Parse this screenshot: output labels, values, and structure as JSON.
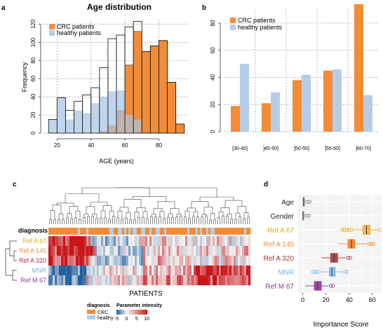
{
  "colors": {
    "crc": "#f28c38",
    "healthy": "#b5cde8",
    "overlap": "#c0b4b0",
    "heat_red": "#c8141a",
    "heat_blue": "#1f5e9c",
    "heat_mid": "#f4f4f4",
    "label_A67": "#e8a80f",
    "label_A145": "#f28c38",
    "label_A320": "#a8333b",
    "label_MNR": "#7fb2dc",
    "label_M67": "#8e3a96",
    "grid": "#999999"
  },
  "panels": {
    "a": "a",
    "b": "b",
    "c": "c",
    "d": "d"
  },
  "chart_data": [
    {
      "panel": "a",
      "type": "bar",
      "title": "Age distribution",
      "xlabel": "AGE (years)",
      "ylabel": "Frequency",
      "xlim": [
        12,
        98
      ],
      "ylim": [
        0,
        125
      ],
      "xticks": [
        20,
        40,
        60,
        80
      ],
      "yticks": [
        0,
        20,
        40,
        60,
        80,
        100,
        120
      ],
      "bin_width": 5,
      "bin_starts": [
        15,
        20,
        25,
        30,
        35,
        40,
        45,
        50,
        55,
        60,
        65,
        70,
        75,
        80,
        85,
        90
      ],
      "legend": [
        "CRC patients",
        "healthy patients"
      ],
      "legend_position": "top-left",
      "grid": true,
      "series": [
        {
          "name": "CRC patients",
          "values": [
            0,
            0,
            0,
            0,
            0,
            0,
            2,
            8,
            25,
            75,
            112,
            90,
            96,
            102,
            56,
            10
          ]
        },
        {
          "name": "healthy patients",
          "values": [
            15,
            39,
            15,
            25,
            22,
            33,
            40,
            46,
            47,
            20,
            15,
            0,
            0,
            0,
            0,
            0
          ]
        },
        {
          "name": "",
          "values": [
            15,
            39,
            25,
            35,
            42,
            50,
            72,
            104,
            108,
            117,
            123,
            90,
            96,
            102,
            56,
            10
          ]
        }
      ]
    },
    {
      "panel": "b",
      "type": "bar",
      "categories": [
        "[30-45]",
        "]45-50]",
        "]50-55]",
        "]55-60]",
        "]60-70]"
      ],
      "ylim": [
        0,
        95
      ],
      "yticks": [
        0,
        20,
        40,
        60,
        80
      ],
      "legend": [
        "CRC patients",
        "healthy patients"
      ],
      "legend_position": "top-left",
      "grid": true,
      "series": [
        {
          "name": "CRC patients",
          "values": [
            19,
            21,
            38,
            45,
            94
          ]
        },
        {
          "name": "healthy patients",
          "values": [
            50,
            29,
            42,
            46,
            27
          ]
        }
      ]
    },
    {
      "panel": "c",
      "type": "heatmap",
      "xlabel": "PATIENTS",
      "row_labels": [
        "Ref A 67",
        "Ref A 145",
        "Ref A 320",
        "MNR",
        "Ref M 67"
      ],
      "annotation_label": "diagnosis",
      "legend_diagnosis_title": "diagnosis",
      "legend_diagnosis": [
        "CRC",
        "healthy"
      ],
      "legend_scale_title": "Parameter intensity",
      "legend_scale_ticks": [
        "-5",
        "0",
        "5",
        "10"
      ],
      "colorscale": [
        -5,
        10
      ]
    },
    {
      "panel": "d",
      "type": "box",
      "xlabel": "Importance Score",
      "xlim": [
        -4,
        68
      ],
      "xticks": [
        0,
        20,
        40,
        60
      ],
      "grid": true,
      "categories": [
        "Age",
        "Gender",
        "Ref A 67",
        "Ref A 145",
        "Ref A 320",
        "MNR",
        "Ref M 67"
      ],
      "boxes": [
        {
          "name": "Age",
          "q1": 0.3,
          "median": 0.8,
          "q3": 1.4,
          "whisker_low": 0,
          "whisker_high": 2.5,
          "outliers": [
            3.5,
            5.0,
            6.0
          ]
        },
        {
          "name": "Gender",
          "q1": 0,
          "median": 0.2,
          "q3": 0.6,
          "whisker_low": 0,
          "whisker_high": 1.5,
          "outliers": [
            3.0,
            4.0,
            5.5
          ]
        },
        {
          "name": "Ref A 67",
          "q1": 52,
          "median": 55,
          "q3": 58,
          "whisker_low": 44,
          "whisker_high": 64,
          "outliers": [
            34,
            36,
            38,
            40,
            42,
            66
          ]
        },
        {
          "name": "Ref A 145",
          "q1": 39,
          "median": 42,
          "q3": 45,
          "whisker_low": 30,
          "whisker_high": 55,
          "outliers": [
            57,
            59,
            61
          ]
        },
        {
          "name": "Ref A 320",
          "q1": 24,
          "median": 27,
          "q3": 30,
          "whisker_low": 16,
          "whisker_high": 37,
          "outliers": [
            39,
            41
          ]
        },
        {
          "name": "MNR",
          "q1": 23,
          "median": 25,
          "q3": 28,
          "whisker_low": 15,
          "whisker_high": 34,
          "outliers": [
            9,
            11,
            13,
            36,
            38
          ]
        },
        {
          "name": "Ref M 67",
          "q1": 10,
          "median": 13,
          "q3": 16,
          "whisker_low": 2,
          "whisker_high": 22,
          "outliers": [
            24,
            26
          ]
        }
      ]
    }
  ]
}
